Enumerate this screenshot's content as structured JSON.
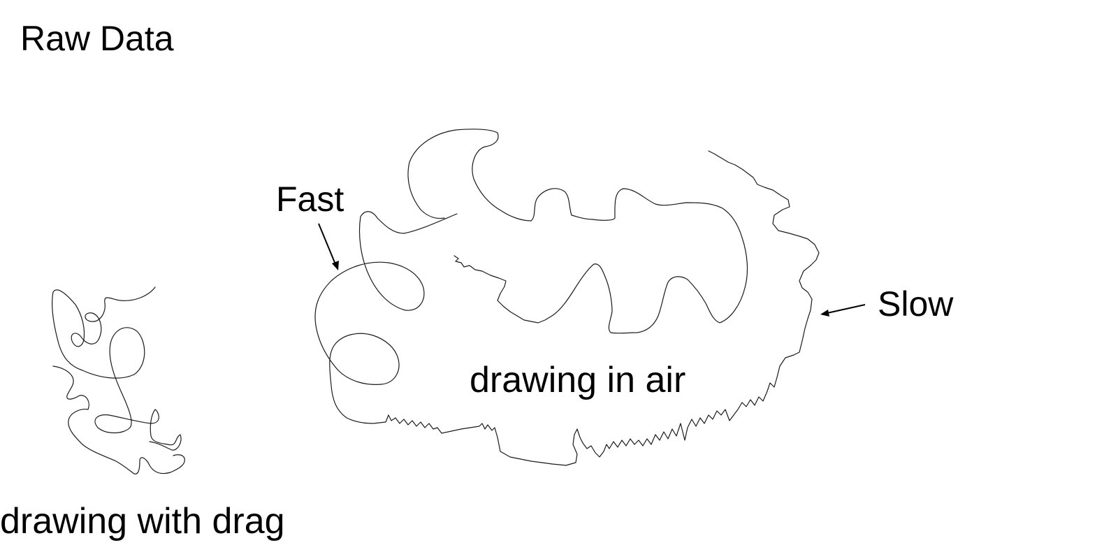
{
  "title": "Raw Data",
  "annotations": {
    "fast": "Fast",
    "slow": "Slow"
  },
  "captions": {
    "air": "drawing in air",
    "drag": "drawing with drag"
  },
  "colors": {
    "background": "#ffffff",
    "stroke": "#1a1a1a",
    "text": "#000000"
  }
}
